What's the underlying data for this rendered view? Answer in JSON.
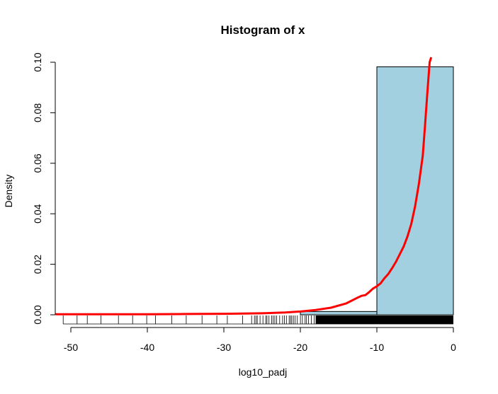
{
  "chart_data": {
    "type": "histogram",
    "title": "Histogram of x",
    "xlabel": "log10_padj",
    "ylabel": "Density",
    "xlim": [
      -52,
      0
    ],
    "ylim": [
      0,
      0.1
    ],
    "x_ticks": [
      "-50",
      "-40",
      "-30",
      "-20",
      "-10",
      "0"
    ],
    "y_ticks": [
      "0.00",
      "0.02",
      "0.04",
      "0.06",
      "0.08",
      "0.10"
    ],
    "bins": [
      {
        "from": -20,
        "to": -10,
        "density": 0.0013
      },
      {
        "from": -10,
        "to": 0,
        "density": 0.0982
      }
    ],
    "bar_color": "#A2D0E0",
    "density_curve": {
      "color": "#FF0000",
      "x": [
        -52,
        -50,
        -45,
        -40,
        -35,
        -30,
        -25,
        -22,
        -20,
        -18,
        -16,
        -14,
        -12.5,
        -12,
        -11.5,
        -11,
        -10.5,
        -10,
        -9.5,
        -9,
        -8.5,
        -8,
        -7.5,
        -7,
        -6.5,
        -6,
        -5.5,
        -5,
        -4.5,
        -4,
        -3.7,
        -3.4,
        -3.1,
        -2.9
      ],
      "y": [
        0.0002,
        0.0002,
        0.0002,
        0.0002,
        0.0003,
        0.0004,
        0.0006,
        0.0009,
        0.0013,
        0.0019,
        0.0028,
        0.0045,
        0.0068,
        0.0075,
        0.0078,
        0.009,
        0.0104,
        0.0113,
        0.0125,
        0.0145,
        0.0162,
        0.0185,
        0.021,
        0.024,
        0.027,
        0.031,
        0.036,
        0.043,
        0.052,
        0.063,
        0.075,
        0.088,
        0.1,
        0.102
      ]
    },
    "rug": {
      "sparse_from": -51,
      "dense_from": -26,
      "solid_from": -18,
      "to": 0
    }
  }
}
